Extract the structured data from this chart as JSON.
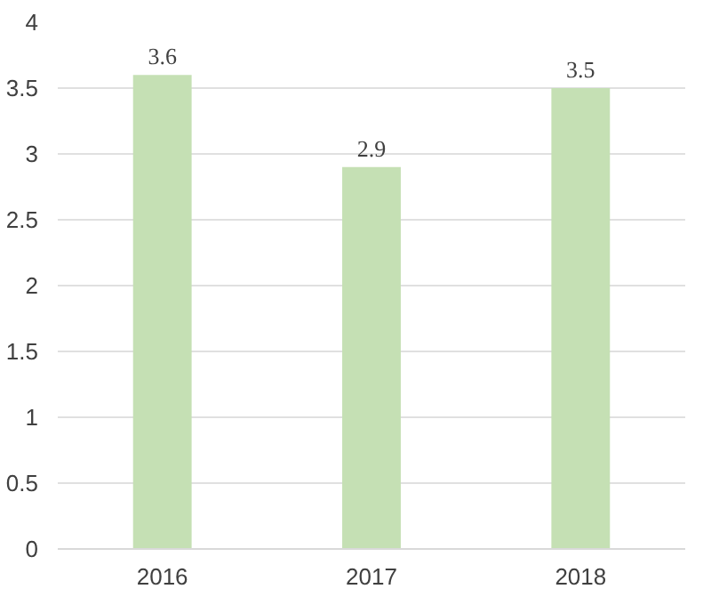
{
  "chart_data": {
    "type": "bar",
    "categories": [
      "2016",
      "2017",
      "2018"
    ],
    "values": [
      3.6,
      2.9,
      3.5
    ],
    "color": "#c5e0b4",
    "ylim": [
      0,
      4
    ],
    "yticks": [
      0,
      0.5,
      1,
      1.5,
      2,
      2.5,
      3,
      3.5,
      4
    ],
    "grid": "y",
    "data_labels": true
  }
}
